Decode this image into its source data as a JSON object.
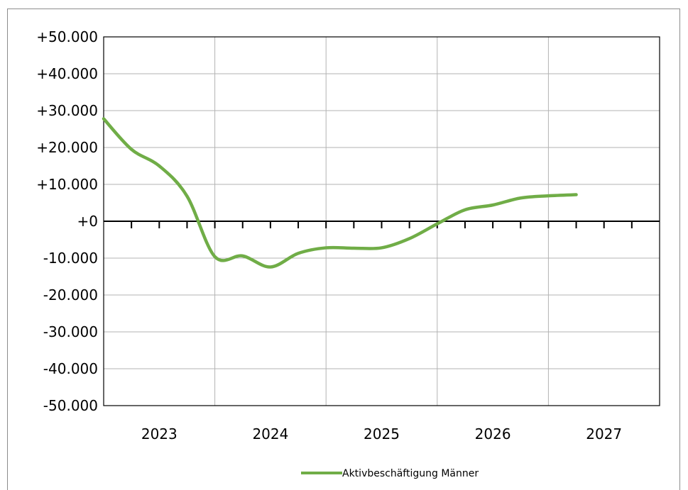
{
  "chart_data": {
    "type": "line",
    "title": "",
    "xlabel": "",
    "ylabel": "",
    "ylim": [
      -50000,
      50000
    ],
    "y_ticks": [
      50000,
      40000,
      30000,
      20000,
      10000,
      0,
      -10000,
      -20000,
      -30000,
      -40000,
      -50000
    ],
    "y_tick_labels": [
      "+50.000",
      "+40.000",
      "+30.000",
      "+20.000",
      "+10.000",
      "+0",
      "-10.000",
      "-20.000",
      "-30.000",
      "-40.000",
      "-50.000"
    ],
    "x_labels": [
      "2023",
      "2024",
      "2025",
      "2026",
      "2027"
    ],
    "grid": true,
    "legend_position": "bottom",
    "series": [
      {
        "name": "Aktivbeschäftigung Männer",
        "color": "#70ad47",
        "points": [
          {
            "x": "2023-Q1",
            "y": 27800
          },
          {
            "x": "2023-Q2",
            "y": 19500
          },
          {
            "x": "2023-Q3",
            "y": 15000
          },
          {
            "x": "2023-Q4",
            "y": 6800
          },
          {
            "x": "2024-Q1",
            "y": -9600
          },
          {
            "x": "2024-Q2",
            "y": -9400
          },
          {
            "x": "2024-Q3",
            "y": -12400
          },
          {
            "x": "2024-Q4",
            "y": -8700
          },
          {
            "x": "2025-Q1",
            "y": -7200
          },
          {
            "x": "2025-Q2",
            "y": -7300
          },
          {
            "x": "2025-Q3",
            "y": -7200
          },
          {
            "x": "2025-Q4",
            "y": -4700
          },
          {
            "x": "2026-Q1",
            "y": -700
          },
          {
            "x": "2026-Q2",
            "y": 3100
          },
          {
            "x": "2026-Q3",
            "y": 4400
          },
          {
            "x": "2026-Q4",
            "y": 6300
          },
          {
            "x": "2027-Q1",
            "y": 6900
          },
          {
            "x": "2027-Q2",
            "y": 7200
          }
        ]
      }
    ]
  }
}
